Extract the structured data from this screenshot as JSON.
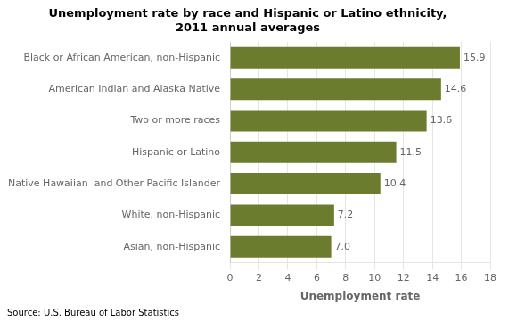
{
  "chart_data": {
    "type": "bar",
    "orientation": "horizontal",
    "title": "Unemployment rate by race and Hispanic or Latino ethnicity,\n2011 annual averages",
    "categories": [
      "Asian, non-Hispanic",
      "White, non-Hispanic",
      "Native Hawaiian  and Other Pacific Islander",
      "Hispanic or Latino",
      "Two or more races",
      "American Indian and Alaska Native",
      "Black or African American, non-Hispanic"
    ],
    "values": [
      7.0,
      7.2,
      10.4,
      11.5,
      13.6,
      14.6,
      15.9
    ],
    "value_labels": [
      "7.0",
      "7.2",
      "10.4",
      "11.5",
      "13.6",
      "14.6",
      "15.9"
    ],
    "data_labels": true,
    "color": "#6b7c2e",
    "xlabel": "Unemployment rate",
    "xlim": [
      0,
      18
    ],
    "xticks": [
      0,
      2,
      4,
      6,
      8,
      10,
      12,
      14,
      16,
      18
    ],
    "grid": true,
    "annotations": [
      "Source: U.S. Bureau of Labor Statistics"
    ]
  }
}
